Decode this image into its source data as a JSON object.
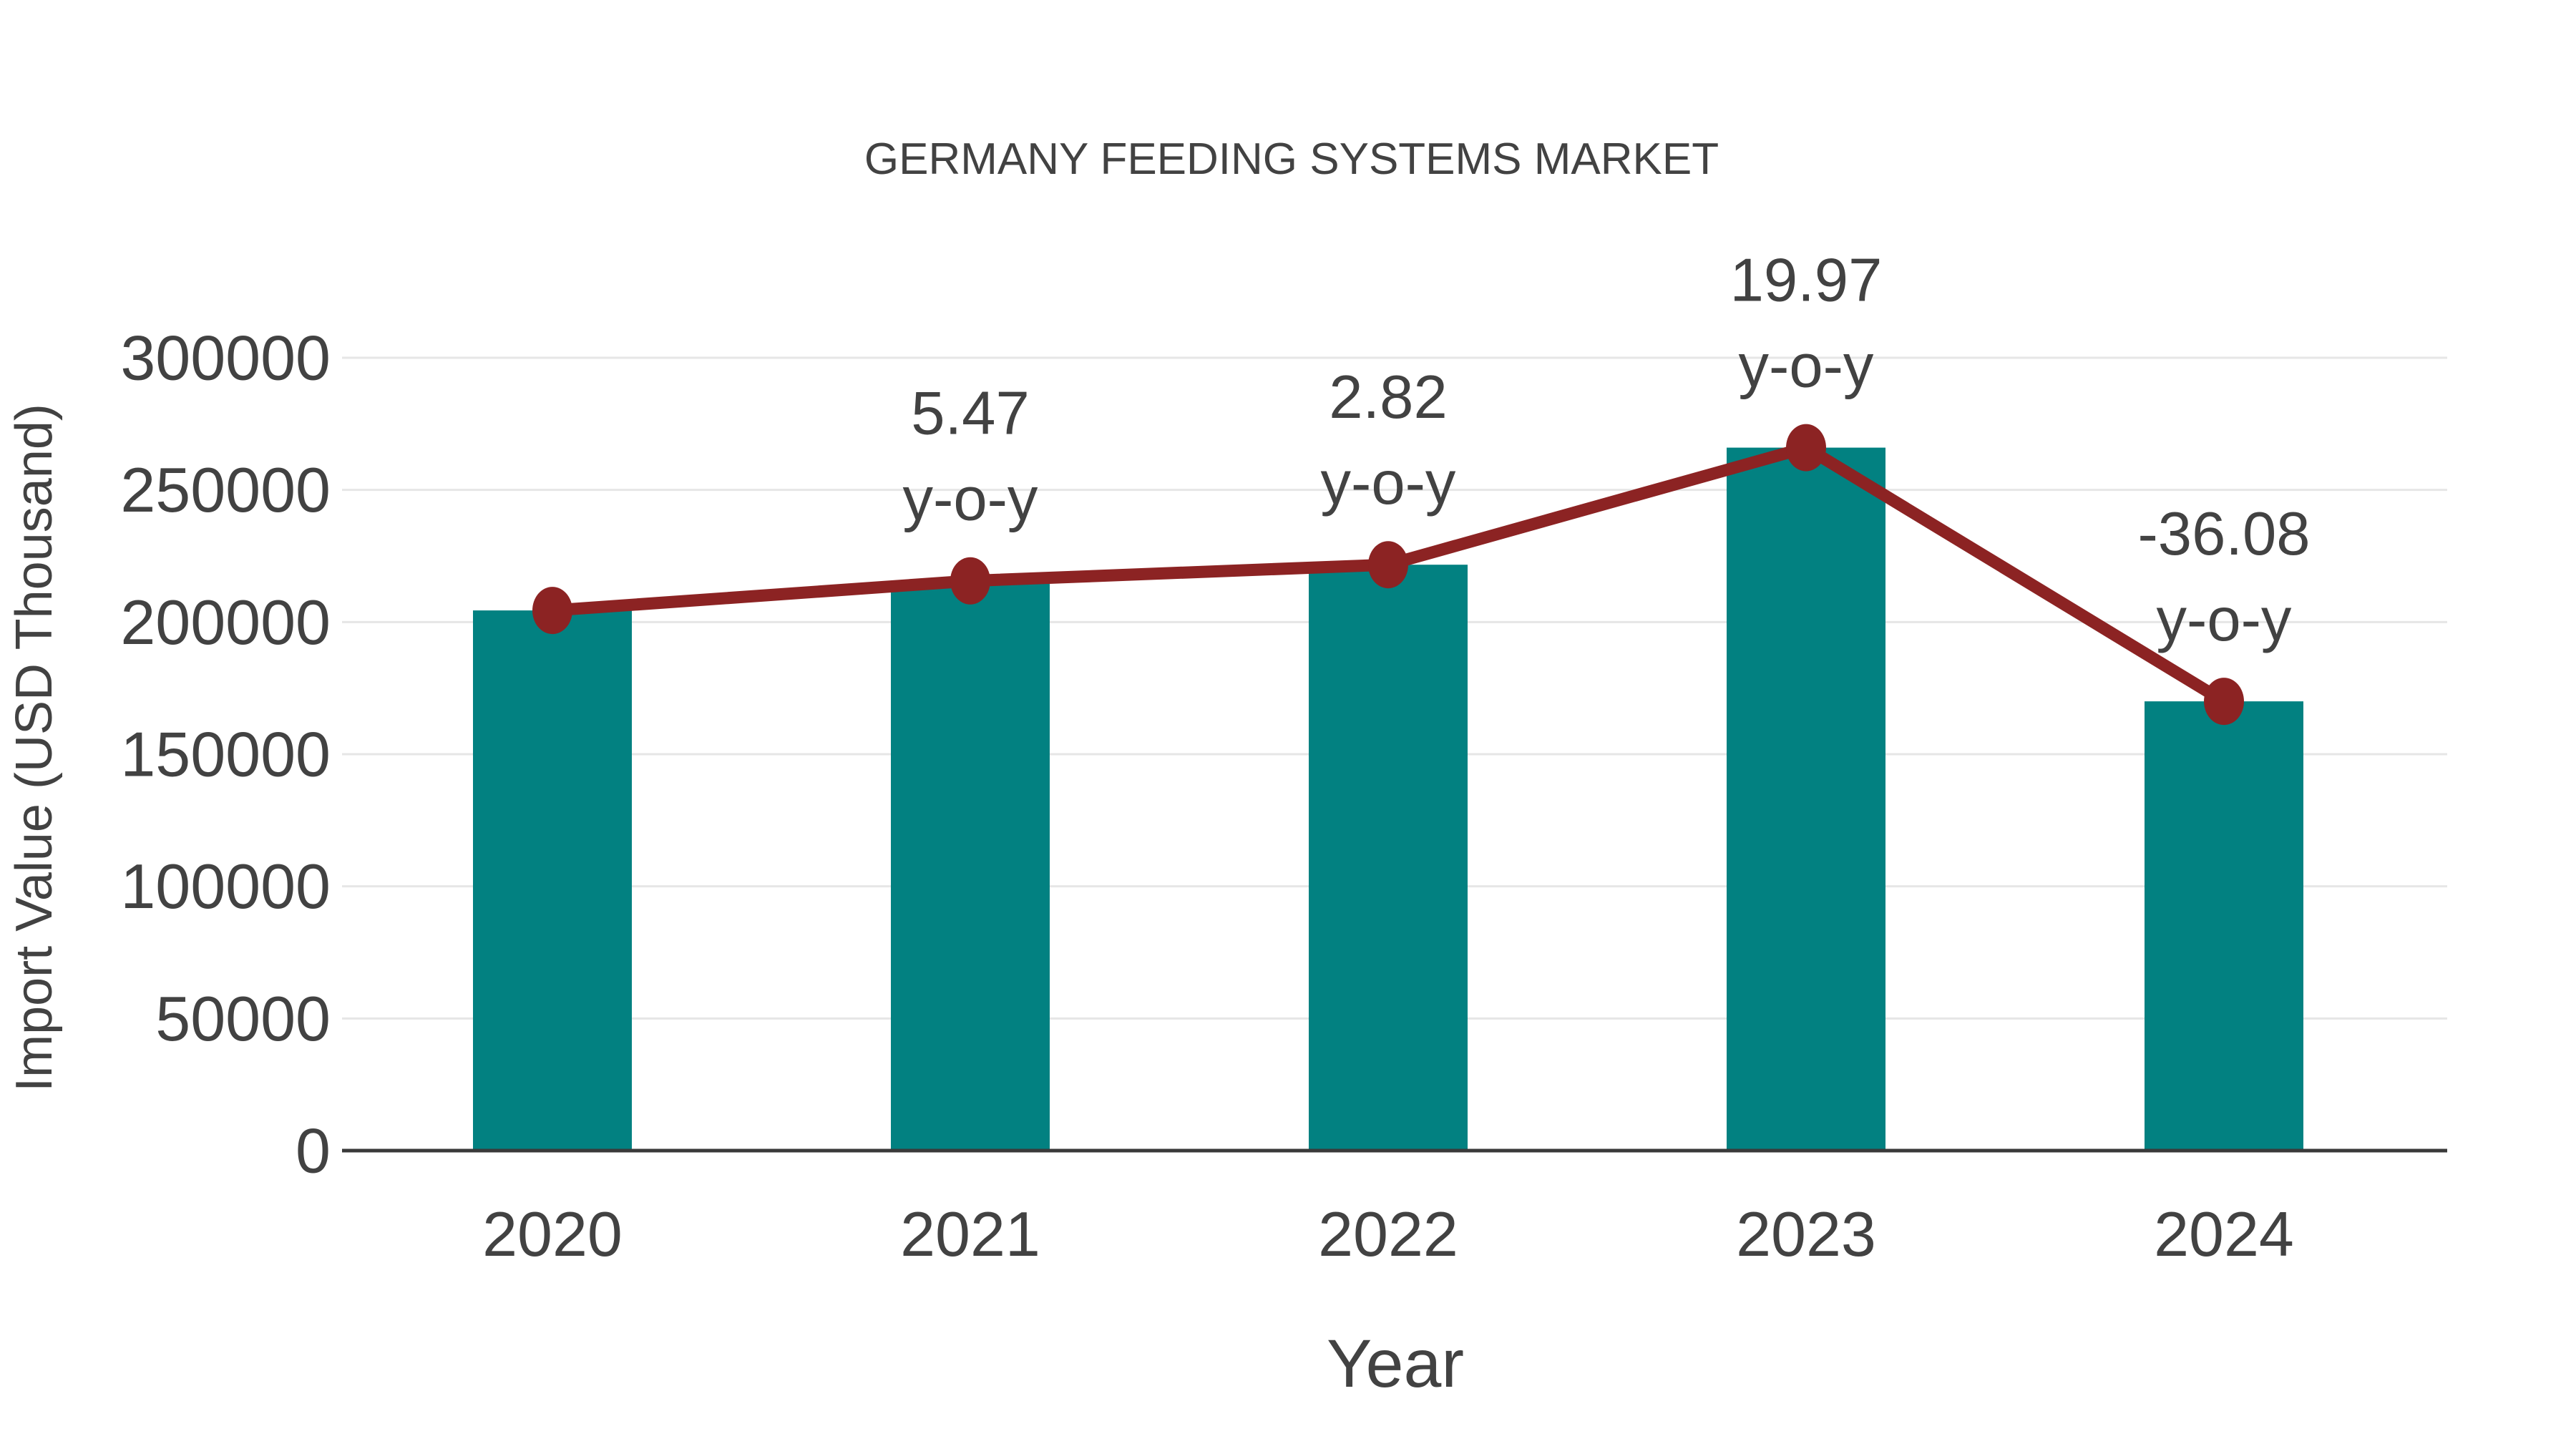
{
  "chart_data": {
    "type": "combo-bar-line",
    "title": "GERMANY FEEDING SYSTEMS MARKET",
    "xlabel": "Year",
    "ylabel": "Import Value (USD Thousand)",
    "categories": [
      "2020",
      "2021",
      "2022",
      "2023",
      "2024"
    ],
    "series": [
      {
        "name": "Import Value (USD Thousand)",
        "type": "bar",
        "color": "#028181",
        "values": [
          204400,
          215600,
          221700,
          266000,
          170000
        ]
      },
      {
        "name": "Import Value trend",
        "type": "line",
        "color": "#8C2323",
        "values": [
          204400,
          215600,
          221700,
          266000,
          170000
        ]
      }
    ],
    "annotations": [
      {
        "category": "2021",
        "line1": "5.47",
        "line2": "y-o-y"
      },
      {
        "category": "2022",
        "line1": "2.82",
        "line2": "y-o-y"
      },
      {
        "category": "2023",
        "line1": "19.97",
        "line2": "y-o-y"
      },
      {
        "category": "2024",
        "line1": "-36.08",
        "line2": "y-o-y"
      }
    ],
    "y_axis": {
      "ticks": [
        0,
        50000,
        100000,
        150000,
        200000,
        250000,
        300000
      ],
      "range": [
        0,
        320000
      ]
    },
    "x_axis": {
      "ticks": [
        "2020",
        "2021",
        "2022",
        "2023",
        "2024"
      ]
    },
    "grid": true,
    "legend": "none",
    "colors": {
      "text": "#424242",
      "grid": "#e6e6e6",
      "axis": "#3a3a3a",
      "background": "#ffffff"
    }
  }
}
